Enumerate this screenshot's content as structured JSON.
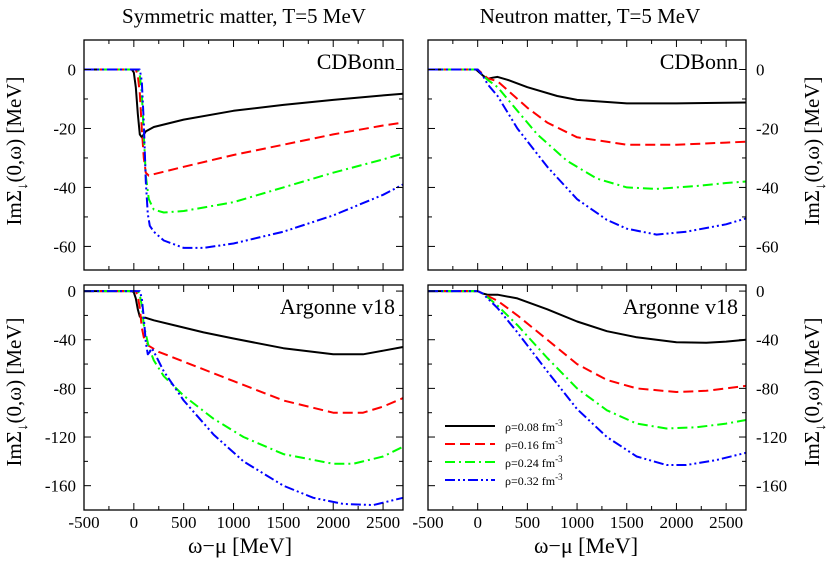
{
  "figure": {
    "col_titles": [
      "Symmetric matter, T=5 MeV",
      "Neutron matter, T=5 MeV"
    ],
    "xlabel": "ω−μ [MeV]",
    "ylabel_main": "ImΣ",
    "ylabel_sub": "↓",
    "ylabel_tail": "(0,ω) [MeV]",
    "legend": [
      {
        "label": "ρ=0.08 fm",
        "sup": "-3",
        "color": "#000000",
        "dash": "solid"
      },
      {
        "label": "ρ=0.16 fm",
        "sup": "-3",
        "color": "#ff0000",
        "dash": "dash"
      },
      {
        "label": "ρ=0.24 fm",
        "sup": "-3",
        "color": "#00ff00",
        "dash": "dashdot"
      },
      {
        "label": "ρ=0.32 fm",
        "sup": "-3",
        "color": "#0000ff",
        "dash": "dashdotdot"
      }
    ]
  },
  "chart_data": [
    {
      "type": "line",
      "title": "CDBonn",
      "column_title": "Symmetric matter, T=5 MeV",
      "xlabel": "ω−μ [MeV]",
      "ylabel": "ImΣ↓(0,ω) [MeV]",
      "xlim": [
        -500,
        2700
      ],
      "ylim": [
        -68,
        10
      ],
      "xticks": [
        -500,
        0,
        500,
        1000,
        1500,
        2000,
        2500
      ],
      "yticks": [
        0,
        -20,
        -40,
        -60
      ],
      "yaxis_side": "left",
      "series": [
        {
          "name": "ρ=0.08 fm-3",
          "x": [
            -500,
            -20,
            0,
            20,
            40,
            60,
            80,
            120,
            200,
            500,
            1000,
            1500,
            2000,
            2500,
            2700
          ],
          "y": [
            0,
            0,
            -1,
            -6,
            -15,
            -22,
            -23,
            -21,
            -19.5,
            -17,
            -14,
            -12,
            -10.3,
            -8.8,
            -8.2
          ]
        },
        {
          "name": "ρ=0.16 fm-3",
          "x": [
            -500,
            20,
            40,
            60,
            80,
            100,
            120,
            150,
            200,
            500,
            1000,
            1500,
            2000,
            2500,
            2700
          ],
          "y": [
            0,
            0,
            -2,
            -8,
            -20,
            -30,
            -35,
            -36,
            -35.5,
            -33,
            -29,
            -25.5,
            -22,
            -19,
            -18
          ]
        },
        {
          "name": "ρ=0.24 fm-3",
          "x": [
            -500,
            40,
            60,
            80,
            100,
            120,
            150,
            200,
            300,
            500,
            1000,
            1500,
            2000,
            2500,
            2700
          ],
          "y": [
            0,
            0,
            -2,
            -8,
            -22,
            -36,
            -44,
            -47.5,
            -48.5,
            -48,
            -45,
            -40,
            -35,
            -30.5,
            -28.5
          ]
        },
        {
          "name": "ρ=0.32 fm-3",
          "x": [
            -500,
            60,
            80,
            100,
            120,
            140,
            160,
            200,
            300,
            500,
            700,
            1000,
            1500,
            2000,
            2500,
            2700
          ],
          "y": [
            0,
            0,
            -4,
            -18,
            -38,
            -49,
            -53,
            -55,
            -58,
            -60.5,
            -60.5,
            -59,
            -55,
            -49.5,
            -42.5,
            -39
          ]
        }
      ]
    },
    {
      "type": "line",
      "title": "CDBonn",
      "column_title": "Neutron matter, T=5 MeV",
      "xlabel": "ω−μ [MeV]",
      "ylabel": "ImΣ↓(0,ω) [MeV]",
      "xlim": [
        -500,
        2700
      ],
      "ylim": [
        -68,
        10
      ],
      "xticks": [
        -500,
        0,
        500,
        1000,
        1500,
        2000,
        2500
      ],
      "yticks": [
        0,
        -20,
        -40,
        -60
      ],
      "yaxis_side": "right",
      "series": [
        {
          "name": "ρ=0.08 fm-3",
          "x": [
            -500,
            -20,
            0,
            50,
            100,
            150,
            200,
            300,
            500,
            800,
            1000,
            1500,
            2000,
            2500,
            2700
          ],
          "y": [
            0,
            0,
            -0.5,
            -2,
            -3.2,
            -2.8,
            -2.5,
            -3.5,
            -6,
            -9,
            -10.3,
            -11.5,
            -11.5,
            -11.3,
            -11.2
          ]
        },
        {
          "name": "ρ=0.16 fm-3",
          "x": [
            -500,
            0,
            50,
            100,
            200,
            300,
            500,
            700,
            1000,
            1500,
            2000,
            2500,
            2700
          ],
          "y": [
            0,
            0,
            -1.5,
            -3,
            -4,
            -7,
            -13,
            -18,
            -23,
            -25.5,
            -25.5,
            -24.8,
            -24.5
          ]
        },
        {
          "name": "ρ=0.24 fm-3",
          "x": [
            -500,
            0,
            50,
            100,
            200,
            400,
            600,
            900,
            1200,
            1500,
            1800,
            2200,
            2500,
            2700
          ],
          "y": [
            0,
            0,
            -2,
            -3.5,
            -6,
            -14,
            -22,
            -31,
            -37,
            -40,
            -40.5,
            -39.5,
            -38.5,
            -38
          ]
        },
        {
          "name": "ρ=0.32 fm-3",
          "x": [
            -500,
            0,
            50,
            100,
            200,
            400,
            700,
            1000,
            1300,
            1500,
            1800,
            2100,
            2500,
            2700
          ],
          "y": [
            0,
            0,
            -2,
            -5,
            -9,
            -20,
            -33,
            -44,
            -51,
            -54,
            -56,
            -55,
            -52.5,
            -50.5
          ]
        }
      ]
    },
    {
      "type": "line",
      "title": "Argonne v18",
      "column_title": "Symmetric matter, T=5 MeV",
      "xlabel": "ω−μ [MeV]",
      "ylabel": "ImΣ↓(0,ω) [MeV]",
      "xlim": [
        -500,
        2700
      ],
      "ylim": [
        -180,
        5
      ],
      "xticks": [
        -500,
        0,
        500,
        1000,
        1500,
        2000,
        2500
      ],
      "yticks": [
        0,
        -40,
        -80,
        -120,
        -160
      ],
      "yaxis_side": "left",
      "series": [
        {
          "name": "ρ=0.08 fm-3",
          "x": [
            -500,
            -20,
            0,
            20,
            40,
            60,
            80,
            120,
            200,
            400,
            700,
            1000,
            1500,
            2000,
            2300,
            2500,
            2700
          ],
          "y": [
            0,
            0,
            -1,
            -6,
            -15,
            -21,
            -22,
            -22,
            -24,
            -28,
            -34,
            -39,
            -47,
            -52,
            -52,
            -49,
            -46
          ]
        },
        {
          "name": "ρ=0.16 fm-3",
          "x": [
            -500,
            20,
            40,
            60,
            80,
            100,
            150,
            250,
            500,
            1000,
            1500,
            2000,
            2300,
            2500,
            2700
          ],
          "y": [
            0,
            0,
            -4,
            -14,
            -30,
            -38,
            -45,
            -50,
            -58,
            -74,
            -90,
            -100,
            -100,
            -95,
            -88
          ]
        },
        {
          "name": "ρ=0.24 fm-3",
          "x": [
            -500,
            40,
            60,
            80,
            100,
            150,
            200,
            300,
            500,
            800,
            1100,
            1500,
            2000,
            2200,
            2500,
            2700
          ],
          "y": [
            0,
            0,
            -3,
            -12,
            -28,
            -46,
            -57,
            -70,
            -86,
            -105,
            -120,
            -134,
            -142,
            -142,
            -136,
            -128
          ]
        },
        {
          "name": "ρ=0.32 fm-3",
          "x": [
            -500,
            60,
            80,
            100,
            120,
            140,
            160,
            180,
            220,
            300,
            500,
            800,
            1100,
            1500,
            1800,
            2100,
            2400,
            2700
          ],
          "y": [
            0,
            0,
            -6,
            -22,
            -42,
            -52,
            -50,
            -47,
            -53,
            -66,
            -90,
            -118,
            -140,
            -160,
            -170,
            -175,
            -176,
            -170
          ]
        }
      ]
    },
    {
      "type": "line",
      "title": "Argonne v18",
      "column_title": "Neutron matter, T=5 MeV",
      "xlabel": "ω−μ [MeV]",
      "ylabel": "ImΣ↓(0,ω) [MeV]",
      "xlim": [
        -500,
        2700
      ],
      "ylim": [
        -180,
        5
      ],
      "xticks": [
        -500,
        0,
        500,
        1000,
        1500,
        2000,
        2500
      ],
      "yticks": [
        0,
        -40,
        -80,
        -120,
        -160
      ],
      "yaxis_side": "right",
      "series": [
        {
          "name": "ρ=0.08 fm-3",
          "x": [
            -500,
            0,
            50,
            100,
            200,
            400,
            700,
            1000,
            1300,
            1600,
            2000,
            2300,
            2500,
            2700
          ],
          "y": [
            0,
            0,
            -2,
            -3,
            -3,
            -6,
            -15,
            -25,
            -33,
            -38,
            -42,
            -42.5,
            -41.5,
            -40
          ]
        },
        {
          "name": "ρ=0.16 fm-3",
          "x": [
            -500,
            0,
            50,
            100,
            200,
            400,
            700,
            1000,
            1300,
            1600,
            2000,
            2300,
            2500,
            2700
          ],
          "y": [
            0,
            0,
            -2,
            -4,
            -8,
            -20,
            -40,
            -60,
            -73,
            -80,
            -83,
            -82,
            -80,
            -78
          ]
        },
        {
          "name": "ρ=0.24 fm-3",
          "x": [
            -500,
            0,
            50,
            100,
            200,
            400,
            700,
            1000,
            1300,
            1600,
            1900,
            2200,
            2500,
            2700
          ],
          "y": [
            0,
            0,
            -2,
            -5,
            -12,
            -28,
            -55,
            -80,
            -98,
            -109,
            -113,
            -112,
            -109,
            -106
          ]
        },
        {
          "name": "ρ=0.32 fm-3",
          "x": [
            -500,
            0,
            50,
            100,
            200,
            400,
            700,
            1000,
            1300,
            1600,
            1900,
            2100,
            2400,
            2700
          ],
          "y": [
            0,
            0,
            -2,
            -6,
            -14,
            -34,
            -66,
            -97,
            -120,
            -136,
            -143,
            -143,
            -139,
            -133
          ]
        }
      ]
    }
  ]
}
